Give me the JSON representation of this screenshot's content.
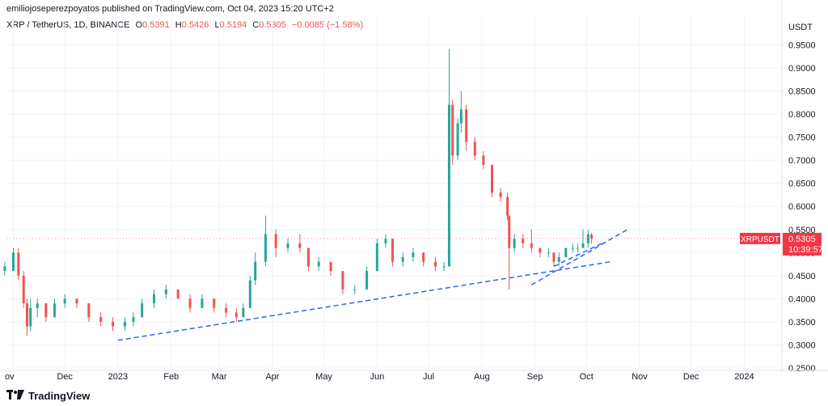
{
  "header": {
    "attribution": "emiliojoseperezpoyatos published on TradingView.com, Oct 04, 2023 15:20 UTC+2"
  },
  "legend": {
    "symbol": "XRP / TetherUS, 1D, BINANCE",
    "open_label": "O",
    "open": "0.5391",
    "high_label": "H",
    "high": "0.5426",
    "low_label": "L",
    "low": "0.5194",
    "close_label": "C",
    "close": "0.5305",
    "change": "−0.0085 (−1.58%)"
  },
  "footer": {
    "brand": "TradingView"
  },
  "colors": {
    "up": "#26a69a",
    "down": "#ef5350",
    "neutral": "#5d606b",
    "trendline": "#2962ff",
    "grid": "#f0f3fa",
    "badge": "#f23645",
    "text": "#131722"
  },
  "chart_data": {
    "type": "candlestick",
    "symbol": "XRP / TetherUS",
    "currency_label": "USDT",
    "price_badge": {
      "symbol": "XRPUSDT",
      "price": "0.5305",
      "countdown": "10:39:57"
    },
    "ylim": [
      0.25,
      0.97
    ],
    "y_ticks": [
      "0.9500",
      "0.9000",
      "0.8500",
      "0.8000",
      "0.7500",
      "0.7000",
      "0.6500",
      "0.6000",
      "0.5500",
      "0.5000",
      "0.4500",
      "0.4000",
      "0.3500",
      "0.3000",
      "0.2500"
    ],
    "x_ticks": [
      "ov",
      "Dec",
      "2023",
      "Feb",
      "Mar",
      "Apr",
      "May",
      "Jun",
      "Jul",
      "Aug",
      "Sep",
      "Oct",
      "Nov",
      "Dec",
      "2024"
    ],
    "x_tick_dates": [
      "2022-11-01",
      "2022-12-01",
      "2023-01-01",
      "2023-02-01",
      "2023-03-01",
      "2023-04-01",
      "2023-05-01",
      "2023-06-01",
      "2023-07-01",
      "2023-08-01",
      "2023-09-01",
      "2023-10-01",
      "2023-11-01",
      "2023-12-01",
      "2024-01-01"
    ],
    "candles": [
      {
        "t": "2022-10-27",
        "o": 0.46,
        "h": 0.48,
        "l": 0.45,
        "c": 0.47
      },
      {
        "t": "2022-11-01",
        "o": 0.46,
        "h": 0.51,
        "l": 0.46,
        "c": 0.5
      },
      {
        "t": "2022-11-04",
        "o": 0.5,
        "h": 0.51,
        "l": 0.44,
        "c": 0.45
      },
      {
        "t": "2022-11-07",
        "o": 0.45,
        "h": 0.46,
        "l": 0.38,
        "c": 0.39
      },
      {
        "t": "2022-11-09",
        "o": 0.39,
        "h": 0.4,
        "l": 0.32,
        "c": 0.34
      },
      {
        "t": "2022-11-11",
        "o": 0.34,
        "h": 0.4,
        "l": 0.33,
        "c": 0.38
      },
      {
        "t": "2022-11-15",
        "o": 0.38,
        "h": 0.4,
        "l": 0.36,
        "c": 0.39
      },
      {
        "t": "2022-11-20",
        "o": 0.39,
        "h": 0.39,
        "l": 0.35,
        "c": 0.36
      },
      {
        "t": "2022-11-25",
        "o": 0.36,
        "h": 0.4,
        "l": 0.36,
        "c": 0.39
      },
      {
        "t": "2022-12-01",
        "o": 0.39,
        "h": 0.41,
        "l": 0.38,
        "c": 0.4
      },
      {
        "t": "2022-12-08",
        "o": 0.4,
        "h": 0.4,
        "l": 0.38,
        "c": 0.39
      },
      {
        "t": "2022-12-15",
        "o": 0.39,
        "h": 0.39,
        "l": 0.35,
        "c": 0.36
      },
      {
        "t": "2022-12-22",
        "o": 0.36,
        "h": 0.37,
        "l": 0.34,
        "c": 0.35
      },
      {
        "t": "2022-12-29",
        "o": 0.35,
        "h": 0.36,
        "l": 0.33,
        "c": 0.34
      },
      {
        "t": "2023-01-05",
        "o": 0.34,
        "h": 0.36,
        "l": 0.33,
        "c": 0.35
      },
      {
        "t": "2023-01-10",
        "o": 0.35,
        "h": 0.37,
        "l": 0.34,
        "c": 0.36
      },
      {
        "t": "2023-01-15",
        "o": 0.36,
        "h": 0.4,
        "l": 0.36,
        "c": 0.39
      },
      {
        "t": "2023-01-22",
        "o": 0.39,
        "h": 0.42,
        "l": 0.38,
        "c": 0.41
      },
      {
        "t": "2023-01-29",
        "o": 0.41,
        "h": 0.43,
        "l": 0.4,
        "c": 0.42
      },
      {
        "t": "2023-02-05",
        "o": 0.42,
        "h": 0.42,
        "l": 0.4,
        "c": 0.4
      },
      {
        "t": "2023-02-12",
        "o": 0.4,
        "h": 0.41,
        "l": 0.37,
        "c": 0.38
      },
      {
        "t": "2023-02-19",
        "o": 0.38,
        "h": 0.41,
        "l": 0.38,
        "c": 0.4
      },
      {
        "t": "2023-02-26",
        "o": 0.4,
        "h": 0.4,
        "l": 0.37,
        "c": 0.38
      },
      {
        "t": "2023-03-05",
        "o": 0.38,
        "h": 0.39,
        "l": 0.36,
        "c": 0.37
      },
      {
        "t": "2023-03-11",
        "o": 0.37,
        "h": 0.38,
        "l": 0.35,
        "c": 0.36
      },
      {
        "t": "2023-03-15",
        "o": 0.36,
        "h": 0.39,
        "l": 0.36,
        "c": 0.38
      },
      {
        "t": "2023-03-19",
        "o": 0.38,
        "h": 0.45,
        "l": 0.38,
        "c": 0.44
      },
      {
        "t": "2023-03-22",
        "o": 0.44,
        "h": 0.5,
        "l": 0.43,
        "c": 0.48
      },
      {
        "t": "2023-03-28",
        "o": 0.48,
        "h": 0.58,
        "l": 0.47,
        "c": 0.54
      },
      {
        "t": "2023-04-03",
        "o": 0.54,
        "h": 0.55,
        "l": 0.49,
        "c": 0.51
      },
      {
        "t": "2023-04-10",
        "o": 0.51,
        "h": 0.53,
        "l": 0.5,
        "c": 0.52
      },
      {
        "t": "2023-04-17",
        "o": 0.52,
        "h": 0.54,
        "l": 0.5,
        "c": 0.51
      },
      {
        "t": "2023-04-22",
        "o": 0.51,
        "h": 0.51,
        "l": 0.46,
        "c": 0.47
      },
      {
        "t": "2023-04-28",
        "o": 0.47,
        "h": 0.49,
        "l": 0.46,
        "c": 0.48
      },
      {
        "t": "2023-05-05",
        "o": 0.48,
        "h": 0.48,
        "l": 0.45,
        "c": 0.46
      },
      {
        "t": "2023-05-12",
        "o": 0.46,
        "h": 0.46,
        "l": 0.41,
        "c": 0.42
      },
      {
        "t": "2023-05-19",
        "o": 0.42,
        "h": 0.43,
        "l": 0.41,
        "c": 0.42
      },
      {
        "t": "2023-05-26",
        "o": 0.42,
        "h": 0.47,
        "l": 0.42,
        "c": 0.46
      },
      {
        "t": "2023-06-01",
        "o": 0.46,
        "h": 0.53,
        "l": 0.46,
        "c": 0.52
      },
      {
        "t": "2023-06-06",
        "o": 0.52,
        "h": 0.54,
        "l": 0.51,
        "c": 0.53
      },
      {
        "t": "2023-06-10",
        "o": 0.53,
        "h": 0.53,
        "l": 0.47,
        "c": 0.48
      },
      {
        "t": "2023-06-16",
        "o": 0.48,
        "h": 0.5,
        "l": 0.47,
        "c": 0.49
      },
      {
        "t": "2023-06-22",
        "o": 0.49,
        "h": 0.51,
        "l": 0.48,
        "c": 0.5
      },
      {
        "t": "2023-06-28",
        "o": 0.5,
        "h": 0.5,
        "l": 0.47,
        "c": 0.48
      },
      {
        "t": "2023-07-05",
        "o": 0.48,
        "h": 0.49,
        "l": 0.46,
        "c": 0.47
      },
      {
        "t": "2023-07-10",
        "o": 0.47,
        "h": 0.48,
        "l": 0.46,
        "c": 0.47
      },
      {
        "t": "2023-07-13",
        "o": 0.47,
        "h": 0.94,
        "l": 0.47,
        "c": 0.82
      },
      {
        "t": "2023-07-15",
        "o": 0.82,
        "h": 0.83,
        "l": 0.69,
        "c": 0.71
      },
      {
        "t": "2023-07-18",
        "o": 0.71,
        "h": 0.79,
        "l": 0.7,
        "c": 0.78
      },
      {
        "t": "2023-07-20",
        "o": 0.78,
        "h": 0.85,
        "l": 0.76,
        "c": 0.81
      },
      {
        "t": "2023-07-23",
        "o": 0.81,
        "h": 0.82,
        "l": 0.72,
        "c": 0.74
      },
      {
        "t": "2023-07-28",
        "o": 0.74,
        "h": 0.75,
        "l": 0.7,
        "c": 0.71
      },
      {
        "t": "2023-08-02",
        "o": 0.71,
        "h": 0.72,
        "l": 0.68,
        "c": 0.69
      },
      {
        "t": "2023-08-07",
        "o": 0.69,
        "h": 0.69,
        "l": 0.62,
        "c": 0.63
      },
      {
        "t": "2023-08-12",
        "o": 0.63,
        "h": 0.64,
        "l": 0.61,
        "c": 0.62
      },
      {
        "t": "2023-08-16",
        "o": 0.62,
        "h": 0.63,
        "l": 0.57,
        "c": 0.58
      },
      {
        "t": "2023-08-17",
        "o": 0.58,
        "h": 0.58,
        "l": 0.42,
        "c": 0.51
      },
      {
        "t": "2023-08-20",
        "o": 0.51,
        "h": 0.54,
        "l": 0.5,
        "c": 0.53
      },
      {
        "t": "2023-08-25",
        "o": 0.53,
        "h": 0.54,
        "l": 0.51,
        "c": 0.52
      },
      {
        "t": "2023-08-30",
        "o": 0.52,
        "h": 0.55,
        "l": 0.5,
        "c": 0.51
      },
      {
        "t": "2023-09-04",
        "o": 0.51,
        "h": 0.51,
        "l": 0.49,
        "c": 0.5
      },
      {
        "t": "2023-09-09",
        "o": 0.5,
        "h": 0.51,
        "l": 0.49,
        "c": 0.5
      },
      {
        "t": "2023-09-12",
        "o": 0.5,
        "h": 0.5,
        "l": 0.47,
        "c": 0.48
      },
      {
        "t": "2023-09-15",
        "o": 0.48,
        "h": 0.5,
        "l": 0.47,
        "c": 0.49
      },
      {
        "t": "2023-09-19",
        "o": 0.49,
        "h": 0.51,
        "l": 0.49,
        "c": 0.51
      },
      {
        "t": "2023-09-23",
        "o": 0.51,
        "h": 0.52,
        "l": 0.5,
        "c": 0.51
      },
      {
        "t": "2023-09-26",
        "o": 0.51,
        "h": 0.52,
        "l": 0.5,
        "c": 0.51
      },
      {
        "t": "2023-09-29",
        "o": 0.51,
        "h": 0.55,
        "l": 0.51,
        "c": 0.52
      },
      {
        "t": "2023-10-02",
        "o": 0.52,
        "h": 0.55,
        "l": 0.51,
        "c": 0.54
      },
      {
        "t": "2023-10-04",
        "o": 0.5391,
        "h": 0.5426,
        "l": 0.5194,
        "c": 0.5305
      }
    ],
    "trendlines": [
      {
        "name": "",
        "x": [
          "2023-01-01",
          "2023-10-15"
        ],
        "y": [
          0.31,
          0.48
        ]
      },
      {
        "name": "",
        "x": [
          "2023-08-30",
          "2023-10-25"
        ],
        "y": [
          0.43,
          0.55
        ]
      },
      {
        "name": "",
        "x": [
          "2023-09-12",
          "2023-10-10"
        ],
        "y": [
          0.47,
          0.52
        ]
      }
    ]
  }
}
